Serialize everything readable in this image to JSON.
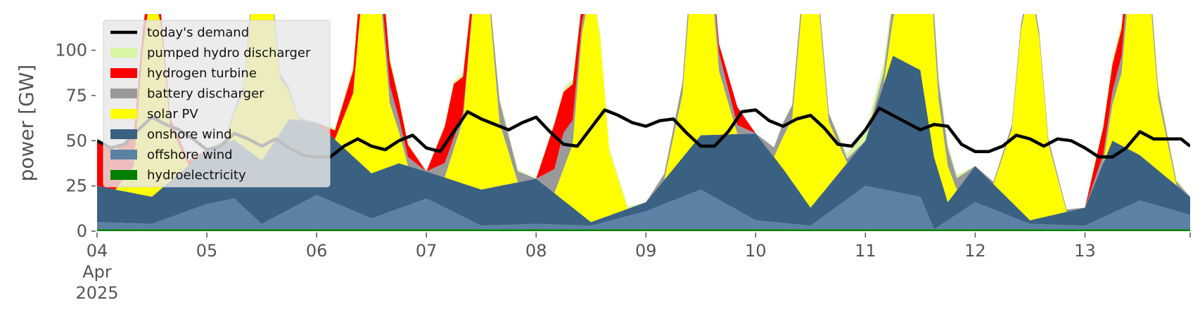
{
  "chart_data": {
    "type": "area",
    "title": "",
    "ylabel": "power [GW]",
    "xlabel": "",
    "ylim": [
      0,
      120
    ],
    "xlim": [
      0,
      239
    ],
    "x_unit": "hours since 2025-04-04 00:00",
    "grid": false,
    "legend_position": "top-left",
    "y_ticks": [
      0,
      25,
      50,
      75,
      100
    ],
    "y_tick_labels": [
      "0",
      "25",
      "50",
      "75",
      "100"
    ],
    "x_ticks": [
      0,
      24,
      48,
      72,
      96,
      120,
      144,
      168,
      192,
      216
    ],
    "x_tick_labels": [
      "04",
      "05",
      "06",
      "07",
      "08",
      "09",
      "10",
      "11",
      "12",
      "13"
    ],
    "x_sublabels": [
      "Apr",
      "2025"
    ],
    "stack_order": [
      "hydroelectricity",
      "offshore wind",
      "onshore wind",
      "solar PV",
      "battery discharger",
      "hydrogen turbine",
      "pumped hydro discharger"
    ],
    "series": [
      {
        "name": "hydroelectricity",
        "color": "#008000",
        "x": [
          0,
          48,
          96,
          144,
          192,
          239
        ],
        "values": [
          1,
          1,
          1,
          1,
          1,
          1
        ]
      },
      {
        "name": "offshore wind",
        "color": "#5b82a5",
        "x": [
          0,
          12,
          24,
          30,
          36,
          48,
          60,
          72,
          84,
          96,
          108,
          120,
          132,
          144,
          156,
          168,
          180,
          183,
          192,
          204,
          216,
          228,
          239
        ],
        "values": [
          4,
          3,
          14,
          17,
          3,
          19,
          6,
          17,
          2,
          3,
          2,
          10,
          22,
          5,
          2,
          24,
          18,
          0,
          15,
          3,
          2,
          16,
          8
        ]
      },
      {
        "name": "onshore wind",
        "color": "#3b6182",
        "x": [
          0,
          12,
          24,
          36,
          42,
          48,
          60,
          66,
          72,
          84,
          96,
          108,
          120,
          132,
          144,
          150,
          156,
          168,
          174,
          180,
          186,
          192,
          204,
          216,
          222,
          228,
          239
        ],
        "values": [
          20,
          15,
          30,
          35,
          50,
          40,
          25,
          25,
          15,
          20,
          25,
          2,
          5,
          30,
          48,
          30,
          10,
          25,
          75,
          70,
          10,
          20,
          2,
          10,
          40,
          25,
          10
        ]
      },
      {
        "name": "solar PV",
        "color": "#ffff00",
        "x": [
          0,
          4,
          8,
          10,
          12,
          14,
          16,
          20,
          24,
          28,
          32,
          34,
          36,
          38,
          40,
          44,
          48,
          52,
          56,
          58,
          60,
          62,
          64,
          68,
          72,
          76,
          80,
          82,
          84,
          86,
          88,
          92,
          96,
          100,
          104,
          106,
          108,
          110,
          112,
          116,
          120,
          124,
          128,
          130,
          132,
          134,
          136,
          140,
          144,
          148,
          152,
          154,
          156,
          158,
          160,
          164,
          168,
          172,
          176,
          178,
          180,
          182,
          184,
          188,
          192,
          196,
          200,
          202,
          204,
          206,
          208,
          212,
          216,
          220,
          224,
          226,
          228,
          230,
          232,
          236,
          239
        ],
        "values": [
          0,
          0,
          15,
          80,
          120,
          90,
          30,
          0,
          0,
          0,
          30,
          90,
          120,
          90,
          30,
          0,
          0,
          0,
          35,
          95,
          125,
          95,
          35,
          0,
          0,
          0,
          35,
          95,
          125,
          95,
          35,
          0,
          0,
          0,
          35,
          100,
          130,
          100,
          35,
          0,
          0,
          0,
          35,
          95,
          125,
          95,
          35,
          0,
          0,
          0,
          35,
          100,
          130,
          100,
          35,
          0,
          0,
          0,
          40,
          100,
          135,
          100,
          40,
          0,
          0,
          0,
          40,
          100,
          130,
          100,
          40,
          0,
          0,
          0,
          40,
          100,
          135,
          100,
          40,
          0,
          0
        ]
      },
      {
        "name": "battery discharger",
        "color": "#999999",
        "x": [
          0,
          24,
          36,
          48,
          56,
          64,
          72,
          76,
          84,
          88,
          96,
          102,
          108,
          120,
          132,
          136,
          144,
          150,
          160,
          168,
          174,
          180,
          186,
          192,
          204,
          216,
          226,
          232,
          239
        ],
        "values": [
          0,
          0,
          5,
          0,
          0,
          10,
          0,
          8,
          0,
          12,
          0,
          20,
          0,
          0,
          10,
          10,
          0,
          8,
          5,
          0,
          10,
          10,
          10,
          0,
          4,
          0,
          12,
          5,
          0
        ]
      },
      {
        "name": "hydrogen turbine",
        "color": "#ff0000",
        "x": [
          0,
          6,
          12,
          24,
          48,
          52,
          60,
          72,
          78,
          84,
          96,
          100,
          104,
          108,
          120,
          132,
          140,
          144,
          216,
          220,
          224,
          228,
          239
        ],
        "values": [
          25,
          20,
          8,
          0,
          0,
          5,
          20,
          0,
          30,
          0,
          0,
          25,
          20,
          0,
          0,
          0,
          10,
          0,
          0,
          15,
          15,
          0,
          0
        ]
      },
      {
        "name": "pumped hydro discharger",
        "color": "#d8f5a2",
        "x": [
          0,
          48,
          60,
          72,
          84,
          96,
          108,
          120,
          132,
          144,
          160,
          168,
          180,
          192,
          204,
          216,
          224,
          232,
          239
        ],
        "values": [
          0,
          0,
          4,
          0,
          3,
          0,
          4,
          0,
          0,
          0,
          0,
          5,
          5,
          0,
          0,
          0,
          4,
          3,
          0
        ]
      }
    ],
    "demand": {
      "name": "today's demand",
      "color": "#000000",
      "x": [
        0,
        3,
        6,
        9,
        12,
        15,
        18,
        21,
        24,
        27,
        30,
        33,
        36,
        39,
        42,
        45,
        48,
        51,
        54,
        57,
        60,
        63,
        66,
        69,
        72,
        75,
        78,
        81,
        84,
        87,
        90,
        93,
        96,
        99,
        102,
        105,
        108,
        111,
        114,
        117,
        120,
        123,
        126,
        129,
        132,
        135,
        138,
        141,
        144,
        147,
        150,
        153,
        156,
        159,
        162,
        165,
        168,
        171,
        174,
        177,
        180,
        183,
        186,
        189,
        192,
        195,
        198,
        201,
        204,
        207,
        210,
        213,
        216,
        219,
        222,
        225,
        228,
        231,
        234,
        237,
        239
      ],
      "values": [
        50,
        46,
        48,
        56,
        63,
        59,
        56,
        51,
        45,
        47,
        54,
        51,
        47,
        51,
        46,
        42,
        41,
        41,
        47,
        51,
        47,
        45,
        50,
        53,
        46,
        44,
        55,
        66,
        62,
        59,
        56,
        60,
        63,
        55,
        48,
        47,
        57,
        67,
        64,
        60,
        58,
        61,
        62,
        54,
        47,
        47,
        55,
        66,
        67,
        61,
        58,
        62,
        64,
        57,
        48,
        47,
        56,
        68,
        64,
        60,
        56,
        59,
        58,
        48,
        44,
        44,
        47,
        53,
        51,
        47,
        51,
        50,
        46,
        41,
        41,
        46,
        55,
        51,
        51,
        51,
        47
      ]
    },
    "legend": [
      "today's demand",
      "pumped hydro discharger",
      "hydrogen turbine",
      "battery discharger",
      "solar PV",
      "onshore wind",
      "offshore wind",
      "hydroelectricity"
    ]
  }
}
